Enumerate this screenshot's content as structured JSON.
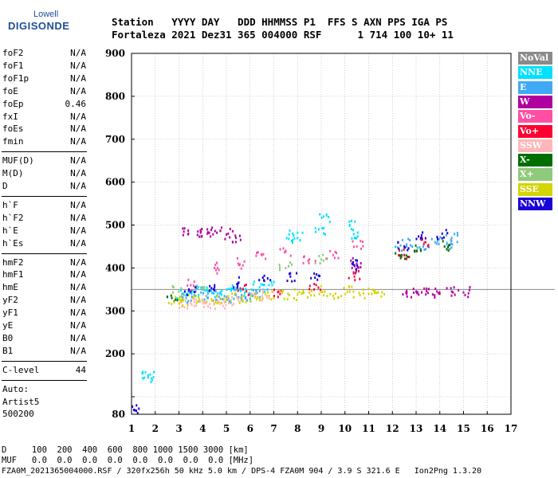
{
  "logo": {
    "line1": "Lowell",
    "line2": "DIGISONDE"
  },
  "header": {
    "line1": "Station   YYYY DAY   DDD HHMMSS P1  FFS S AXN PPS IGA PS",
    "line2": "Fortaleza 2021 Dez31 365 004000 RSF      1 714 100 10+ 11"
  },
  "left_panel": {
    "group1": [
      {
        "label": "foF2",
        "value": "N/A"
      },
      {
        "label": "foF1",
        "value": "N/A"
      },
      {
        "label": "foF1p",
        "value": "N/A"
      },
      {
        "label": "foE",
        "value": "N/A"
      },
      {
        "label": "foEp",
        "value": "0.46"
      },
      {
        "label": "fxI",
        "value": "N/A"
      },
      {
        "label": "foEs",
        "value": "N/A"
      },
      {
        "label": "fmin",
        "value": "N/A"
      }
    ],
    "group2": [
      {
        "label": "MUF(D)",
        "value": "N/A"
      },
      {
        "label": "M(D)",
        "value": "N/A"
      },
      {
        "label": "D",
        "value": "N/A"
      }
    ],
    "group3": [
      {
        "label": "h`F",
        "value": "N/A"
      },
      {
        "label": "h`F2",
        "value": "N/A"
      },
      {
        "label": "h`E",
        "value": "N/A"
      },
      {
        "label": "h`Es",
        "value": "N/A"
      }
    ],
    "group4": [
      {
        "label": "hmF2",
        "value": "N/A"
      },
      {
        "label": "hmF1",
        "value": "N/A"
      },
      {
        "label": "hmE",
        "value": "N/A"
      },
      {
        "label": "yF2",
        "value": "N/A"
      },
      {
        "label": "yF1",
        "value": "N/A"
      },
      {
        "label": "yE",
        "value": "N/A"
      },
      {
        "label": "B0",
        "value": "N/A"
      },
      {
        "label": "B1",
        "value": "N/A"
      }
    ],
    "clevel": {
      "label": "C-level",
      "value": "44"
    },
    "auto": [
      "Auto:",
      "Artist5",
      "500200"
    ]
  },
  "legend": [
    {
      "label": "NoVal",
      "color": "#8a8a8a"
    },
    {
      "label": "NNE",
      "color": "#00e0ff"
    },
    {
      "label": "E",
      "color": "#3fa9f5"
    },
    {
      "label": "W",
      "color": "#b0009f"
    },
    {
      "label": "Vo-",
      "color": "#ff4fa3"
    },
    {
      "label": "Vo+",
      "color": "#ff0033"
    },
    {
      "label": "SSW",
      "color": "#ffb6b9"
    },
    {
      "label": "X-",
      "color": "#006e00"
    },
    {
      "label": "X+",
      "color": "#8fc97a"
    },
    {
      "label": "SSE",
      "color": "#d4d400"
    },
    {
      "label": "NNW",
      "color": "#1a00d6"
    }
  ],
  "bottom": {
    "line1": "D     100  200  400  600  800 1000 1500 3000 [km]",
    "line2": "MUF   0.0  0.0  0.0  0.0  0.0  0.0  0.0  0.0 [MHz]",
    "line3": "FZA0M_2021365004000.RSF / 320fx256h 50 kHz 5.0 km / DPS-4 FZA0M 904 / 3.9 S 321.6 E   Ion2Png 1.3.20"
  },
  "chart_data": {
    "type": "scatter",
    "title": "",
    "xlabel": "",
    "ylabel": "",
    "xlim": [
      1,
      17
    ],
    "ylim": [
      80,
      900
    ],
    "x_ticks": [
      1,
      2,
      3,
      4,
      5,
      6,
      7,
      8,
      9,
      10,
      11,
      12,
      13,
      14,
      15,
      16,
      17
    ],
    "y_ticks": [
      80,
      100,
      200,
      300,
      400,
      500,
      600,
      700,
      800,
      900
    ],
    "y_tick_labels": [
      "80",
      "",
      "200",
      "300",
      "400",
      "500",
      "600",
      "700",
      "800",
      "900"
    ],
    "grid": "dotted",
    "reference_line_y": 350,
    "series": [
      {
        "name": "NNE",
        "color": "#00e0ff",
        "points": [
          [
            3.2,
            340
          ],
          [
            3.6,
            345
          ],
          [
            4.0,
            350
          ],
          [
            4.4,
            342
          ],
          [
            4.8,
            338
          ],
          [
            5.2,
            352
          ],
          [
            5.6,
            346
          ],
          [
            6.0,
            340
          ],
          [
            6.4,
            355
          ],
          [
            6.8,
            360
          ],
          [
            7.8,
            480
          ],
          [
            8.0,
            470
          ],
          [
            8.9,
            490
          ],
          [
            9.1,
            520
          ],
          [
            10.2,
            500
          ],
          [
            10.4,
            470
          ],
          [
            1.7,
            150
          ],
          [
            1.7,
            145
          ]
        ]
      },
      {
        "name": "E",
        "color": "#3fa9f5",
        "points": [
          [
            3.3,
            330
          ],
          [
            3.7,
            335
          ],
          [
            4.2,
            330
          ],
          [
            4.6,
            335
          ],
          [
            5.0,
            332
          ],
          [
            5.4,
            338
          ],
          [
            5.8,
            330
          ],
          [
            6.2,
            340
          ],
          [
            12.4,
            440
          ],
          [
            12.6,
            455
          ],
          [
            13.3,
            450
          ],
          [
            13.8,
            460
          ],
          [
            14.3,
            455
          ],
          [
            14.5,
            470
          ]
        ]
      },
      {
        "name": "W",
        "color": "#b0009f",
        "points": [
          [
            3.4,
            480
          ],
          [
            3.8,
            485
          ],
          [
            4.2,
            480
          ],
          [
            4.6,
            482
          ],
          [
            5.0,
            478
          ],
          [
            5.4,
            470
          ],
          [
            10.3,
            400
          ],
          [
            10.5,
            410
          ],
          [
            12.6,
            340
          ],
          [
            13.0,
            345
          ],
          [
            13.5,
            342
          ],
          [
            14.0,
            340
          ],
          [
            14.5,
            345
          ],
          [
            15.0,
            343
          ]
        ]
      },
      {
        "name": "Vo-",
        "color": "#ff4fa3",
        "points": [
          [
            3.5,
            360
          ],
          [
            4.5,
            400
          ],
          [
            5.5,
            410
          ],
          [
            6.5,
            430
          ],
          [
            7.5,
            440
          ],
          [
            8.5,
            420
          ],
          [
            9.5,
            430
          ],
          [
            10.5,
            450
          ]
        ]
      },
      {
        "name": "Vo+",
        "color": "#ff0033",
        "points": [
          [
            5.7,
            350
          ],
          [
            7.2,
            345
          ],
          [
            8.7,
            350
          ],
          [
            10.4,
            380
          ],
          [
            12.5,
            430
          ],
          [
            13.4,
            460
          ]
        ]
      },
      {
        "name": "SSW",
        "color": "#ffb6b9",
        "points": [
          [
            3.1,
            320
          ],
          [
            3.5,
            318
          ],
          [
            3.9,
            322
          ],
          [
            4.3,
            316
          ],
          [
            4.7,
            320
          ],
          [
            5.1,
            318
          ],
          [
            5.5,
            325
          ],
          [
            6.3,
            330
          ],
          [
            6.7,
            335
          ]
        ]
      },
      {
        "name": "X-",
        "color": "#006e00",
        "points": [
          [
            2.7,
            330
          ],
          [
            12.4,
            430
          ],
          [
            13.2,
            440
          ],
          [
            14.2,
            450
          ]
        ]
      },
      {
        "name": "X+",
        "color": "#8fc97a",
        "points": [
          [
            3.0,
            345
          ],
          [
            4.0,
            355
          ],
          [
            7.5,
            400
          ],
          [
            9.0,
            420
          ]
        ]
      },
      {
        "name": "SSE",
        "color": "#d4d400",
        "points": [
          [
            2.8,
            320
          ],
          [
            3.2,
            325
          ],
          [
            3.8,
            322
          ],
          [
            4.4,
            324
          ],
          [
            5.0,
            328
          ],
          [
            5.6,
            330
          ],
          [
            6.2,
            332
          ],
          [
            6.8,
            335
          ],
          [
            7.6,
            340
          ],
          [
            8.0,
            338
          ],
          [
            8.5,
            342
          ],
          [
            9.0,
            345
          ],
          [
            9.6,
            340
          ],
          [
            10.2,
            345
          ],
          [
            10.6,
            342
          ],
          [
            11.0,
            340
          ],
          [
            11.4,
            343
          ]
        ]
      },
      {
        "name": "NNW",
        "color": "#1a00d6",
        "points": [
          [
            3.5,
            345
          ],
          [
            4.5,
            355
          ],
          [
            5.5,
            365
          ],
          [
            6.6,
            370
          ],
          [
            7.7,
            380
          ],
          [
            8.8,
            385
          ],
          [
            10.3,
            410
          ],
          [
            12.5,
            450
          ],
          [
            13.2,
            470
          ],
          [
            14.1,
            480
          ],
          [
            1.1,
            85
          ]
        ]
      }
    ]
  }
}
